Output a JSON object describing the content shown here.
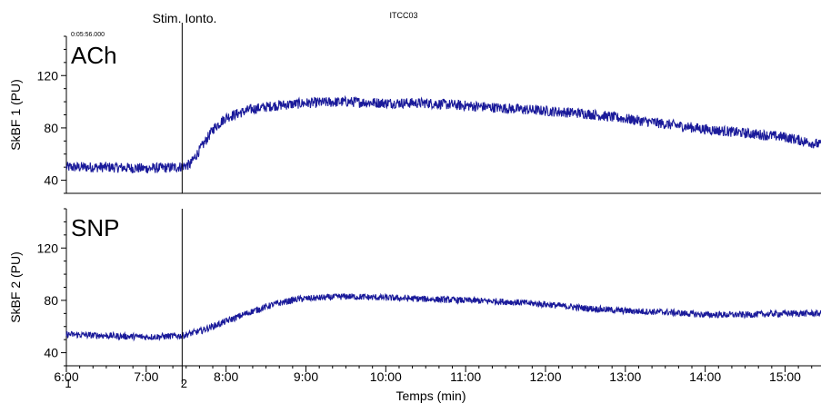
{
  "chart_data": {
    "type": "line",
    "title": "ITCC03",
    "top_time_label": "0:05:56.000",
    "xlabel": "Temps (min)",
    "x_units": "min",
    "xlim": [
      6.0,
      15.45
    ],
    "x_ticks": [
      6,
      7,
      8,
      9,
      10,
      11,
      12,
      13,
      14,
      15
    ],
    "x_tick_labels": [
      "6:00",
      "7:00",
      "8:00",
      "9:00",
      "10:00",
      "11:00",
      "12:00",
      "13:00",
      "14:00",
      "15:00"
    ],
    "event_marker": {
      "x": 7.45,
      "label": "Stim. Ionto."
    },
    "bottom_markers": [
      {
        "x": 6.0,
        "label": "1"
      },
      {
        "x": 7.45,
        "label": "2"
      }
    ],
    "panels": [
      {
        "name": "ACh",
        "ylabel": "SkBF 1 (PU)",
        "ylim": [
          30,
          150
        ],
        "y_ticks": [
          40,
          80,
          120
        ],
        "color": "#1a1a9a",
        "noise": 4,
        "series": {
          "x": [
            6.0,
            6.5,
            7.0,
            7.4,
            7.55,
            7.7,
            7.85,
            8.0,
            8.3,
            8.6,
            9.0,
            9.5,
            10.0,
            10.5,
            11.0,
            11.5,
            12.0,
            12.5,
            13.0,
            13.5,
            14.0,
            14.5,
            15.0,
            15.45
          ],
          "y": [
            50,
            50,
            49,
            50,
            52,
            66,
            80,
            88,
            94,
            97,
            99,
            100,
            99,
            99,
            97,
            95,
            93,
            91,
            87,
            83,
            79,
            76,
            73,
            67
          ]
        }
      },
      {
        "name": "SNP",
        "ylabel": "SkBF 2 (PU)",
        "ylim": [
          30,
          150
        ],
        "y_ticks": [
          40,
          80,
          120
        ],
        "color": "#1a1a9a",
        "noise": 2.5,
        "series": {
          "x": [
            6.0,
            6.5,
            7.0,
            7.45,
            7.7,
            8.0,
            8.3,
            8.6,
            8.9,
            9.5,
            10.0,
            10.5,
            11.0,
            11.5,
            12.0,
            12.5,
            13.0,
            13.5,
            14.0,
            14.5,
            15.0,
            15.45
          ],
          "y": [
            54,
            53,
            52,
            53,
            57,
            64,
            71,
            77,
            81,
            83,
            82,
            81,
            80,
            79,
            77,
            74,
            72,
            71,
            69,
            69,
            70,
            70
          ]
        }
      }
    ]
  }
}
